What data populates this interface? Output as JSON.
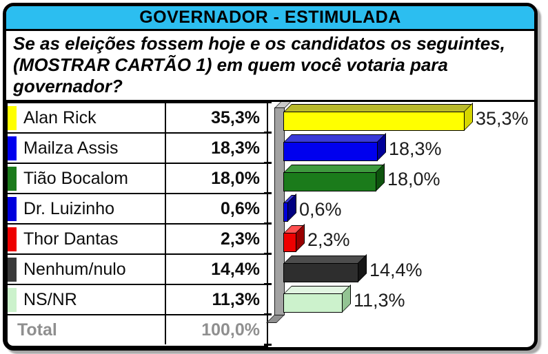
{
  "header": {
    "title": "GOVERNADOR - ESTIMULADA",
    "bg_color": "#2CBEF0"
  },
  "question": {
    "text": "Se as eleições fossem hoje e os candidatos os seguintes, (MOSTRAR CARTÃO 1) em quem você votaria para governador?"
  },
  "table": {
    "rows": [
      {
        "label": "Alan Rick",
        "value": "35,3%",
        "color": "#FFFF00"
      },
      {
        "label": "Mailza Assis",
        "value": "18,3%",
        "color": "#0000EE"
      },
      {
        "label": "Tião Bocalom",
        "value": "18,0%",
        "color": "#1B7B1B"
      },
      {
        "label": "Dr. Luizinho",
        "value": "0,6%",
        "color": "#0000DD"
      },
      {
        "label": "Thor Dantas",
        "value": "2,3%",
        "color": "#EE0000"
      },
      {
        "label": "Nenhum/nulo",
        "value": "14,4%",
        "color": "#3A3A3A"
      },
      {
        "label": "NS/NR",
        "value": "11,3%",
        "color": "#CCF2CC"
      }
    ],
    "total": {
      "label": "Total",
      "value": "100,0%"
    }
  },
  "chart_data": {
    "type": "bar",
    "orientation": "horizontal",
    "title": "GOVERNADOR - ESTIMULADA",
    "xlabel": "",
    "ylabel": "",
    "xlim": [
      0,
      50
    ],
    "grid": false,
    "legend": false,
    "categories": [
      "Alan Rick",
      "Mailza Assis",
      "Tião Bocalom",
      "Dr. Luizinho",
      "Thor Dantas",
      "Nenhum/nulo",
      "NS/NR"
    ],
    "values": [
      35.3,
      18.3,
      18.0,
      0.6,
      2.3,
      14.4,
      11.3
    ],
    "bars": [
      {
        "category": "Alan Rick",
        "value": 35.3,
        "label": "35,3%",
        "front": "#FFFF00",
        "top": "#B9B92B",
        "side": "#D6D600"
      },
      {
        "category": "Mailza Assis",
        "value": 18.3,
        "label": "18,3%",
        "front": "#0000EE",
        "top": "#3A3AD8",
        "side": "#000099"
      },
      {
        "category": "Tião Bocalom",
        "value": 18.0,
        "label": "18,0%",
        "front": "#1B7B1B",
        "top": "#3E9A3E",
        "side": "#0E540E"
      },
      {
        "category": "Dr. Luizinho",
        "value": 0.6,
        "label": "0,6%",
        "front": "#0000DD",
        "top": "#3A3AD8",
        "side": "#000080"
      },
      {
        "category": "Thor Dantas",
        "value": 2.3,
        "label": "2,3%",
        "front": "#EE0000",
        "top": "#FF5050",
        "side": "#990000"
      },
      {
        "category": "Nenhum/nulo",
        "value": 14.4,
        "label": "14,4%",
        "front": "#2E2E2E",
        "top": "#4D4D4D",
        "side": "#161616"
      },
      {
        "category": "NS/NR",
        "value": 11.3,
        "label": "11,3%",
        "front": "#CCF2CC",
        "top": "#E2F6E2",
        "side": "#93C493"
      }
    ],
    "axis_wall_color": "#A3A3A3"
  }
}
